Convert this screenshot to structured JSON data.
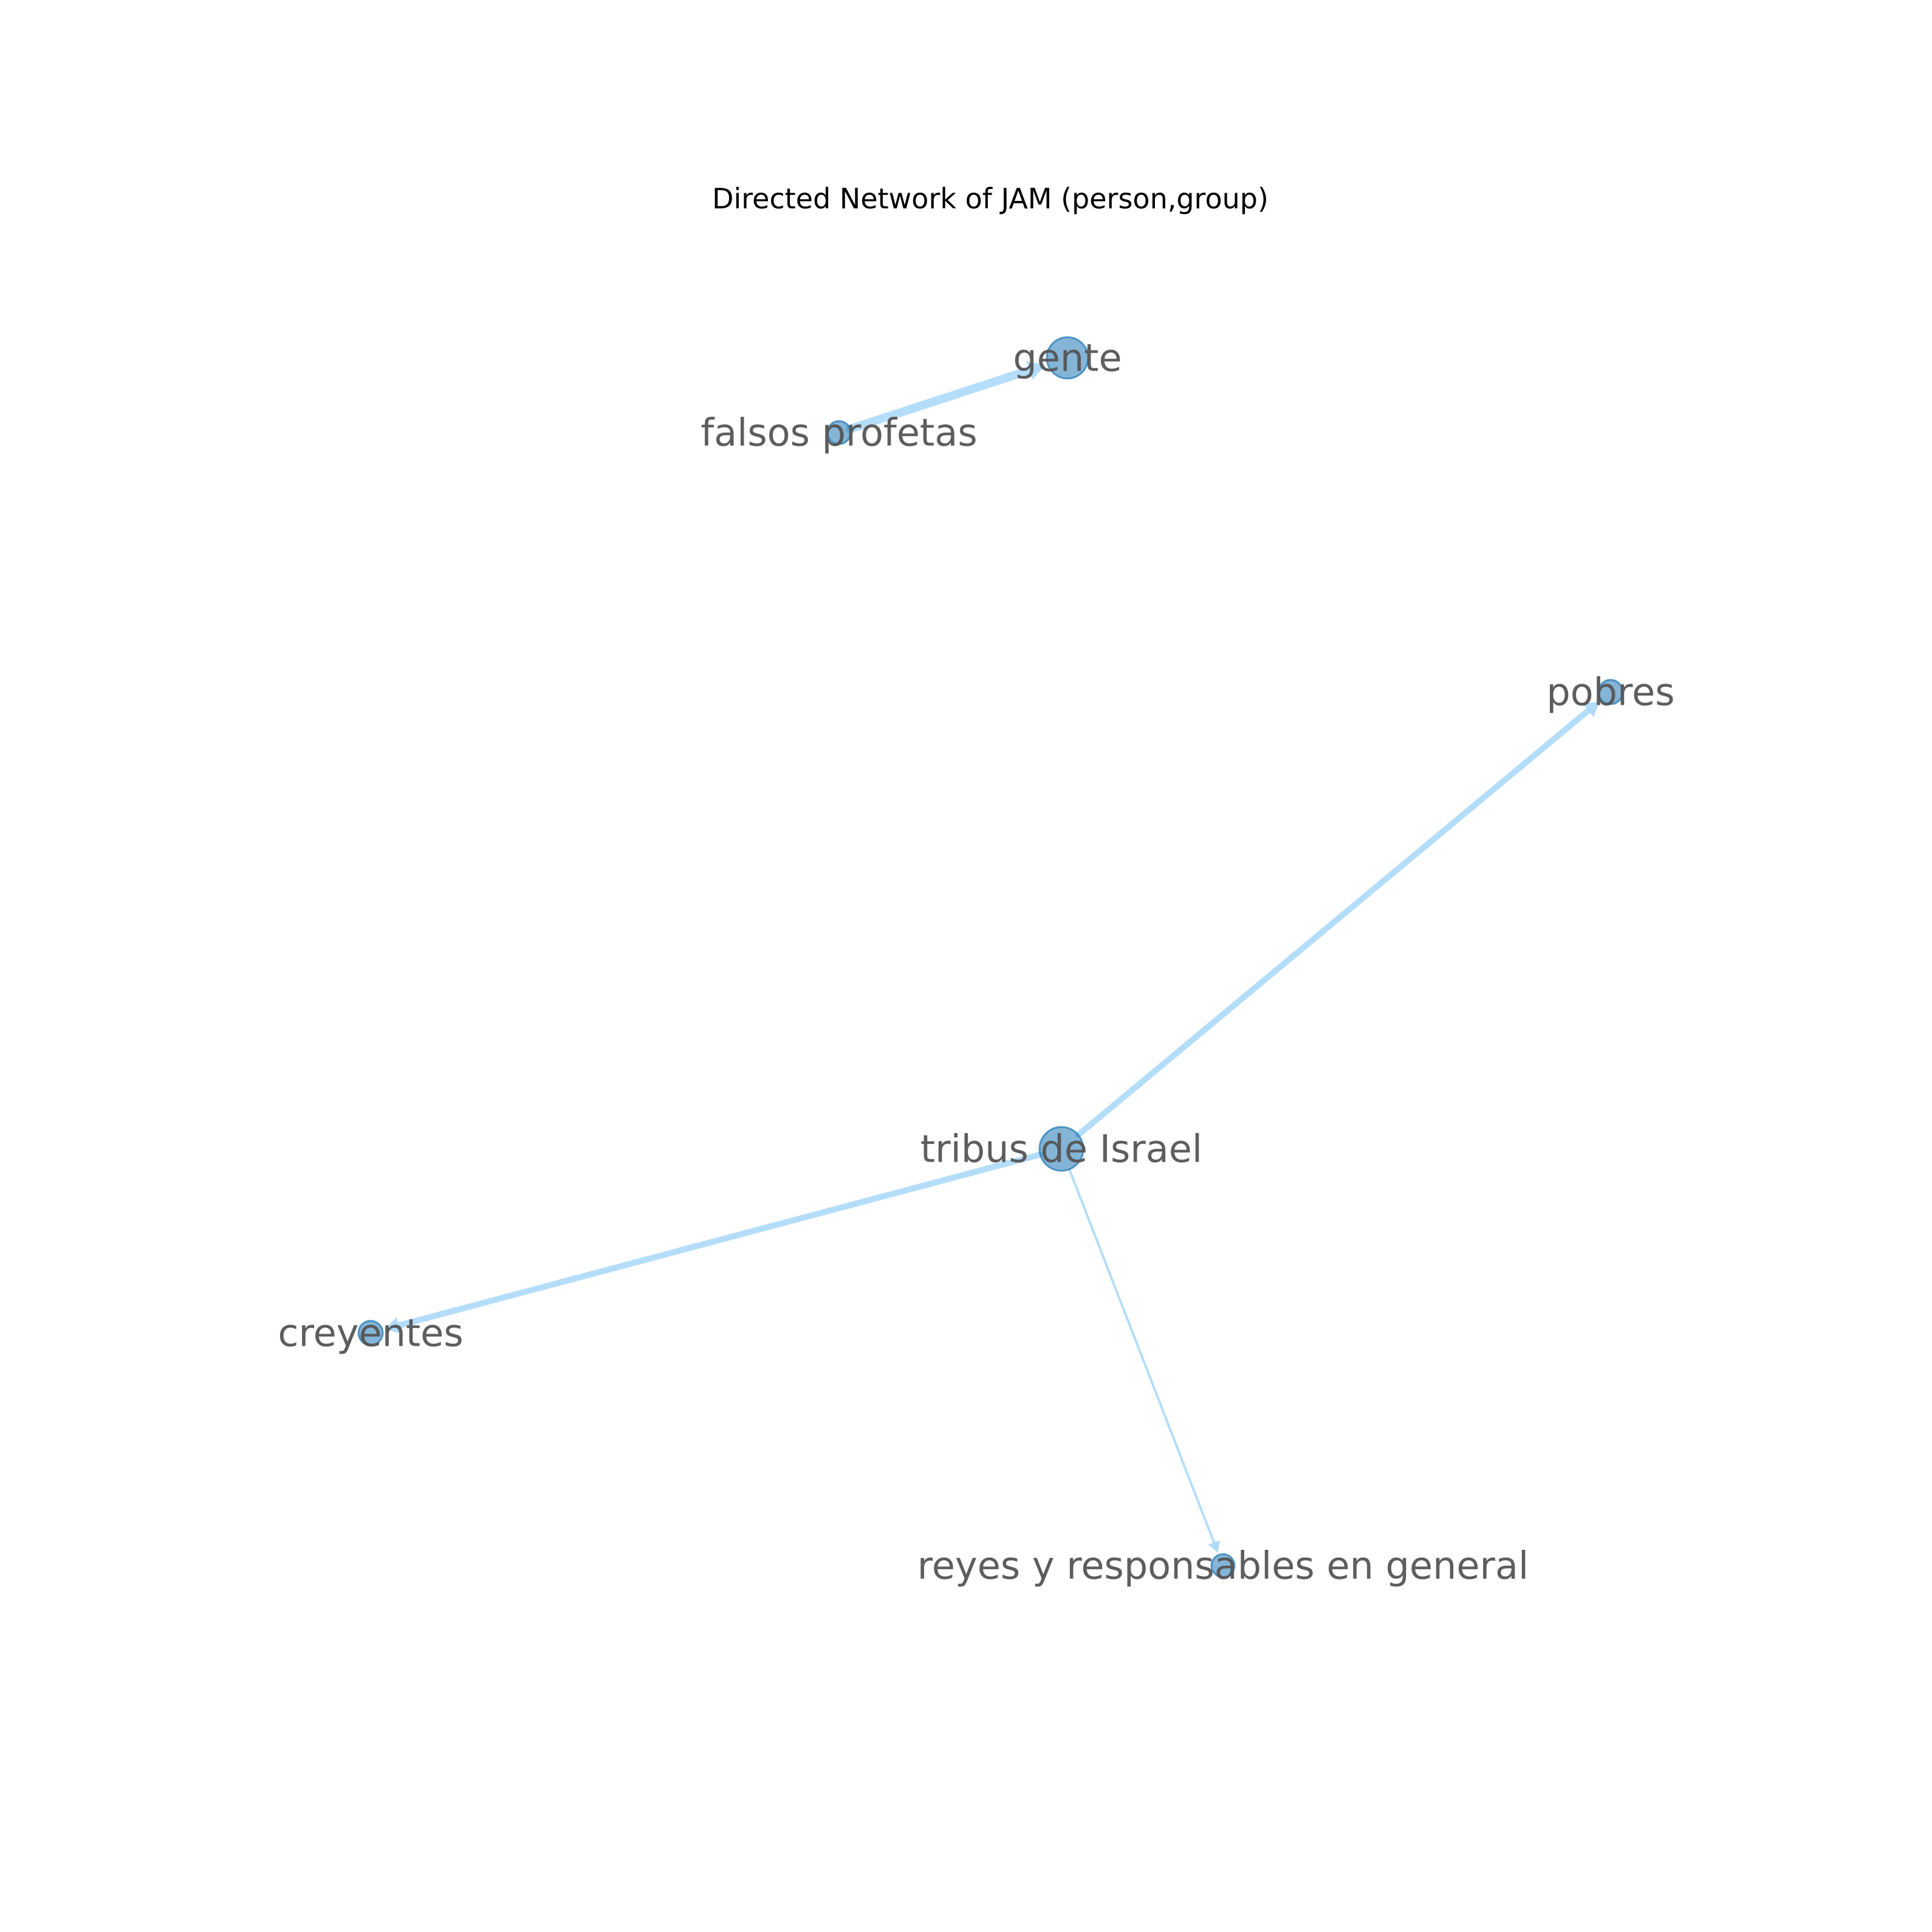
{
  "title": "Directed Network of JAM (person,group)",
  "colors": {
    "node_fill": "#1f77b4",
    "edge": "#a8d8f8",
    "label": "#555555",
    "title": "#000000"
  },
  "nodes": [
    {
      "id": "gente",
      "label": "gente"
    },
    {
      "id": "falsos profetas",
      "label": "falsos profetas"
    },
    {
      "id": "pobres",
      "label": "pobres"
    },
    {
      "id": "tribus de Israel",
      "label": "tribus de Israel"
    },
    {
      "id": "creyentes",
      "label": "creyentes"
    },
    {
      "id": "reyes y responsables en general",
      "label": "reyes y responsables en general"
    }
  ],
  "edges": [
    {
      "source": "falsos profetas",
      "target": "gente",
      "weight": 4
    },
    {
      "source": "tribus de Israel",
      "target": "pobres",
      "weight": 3
    },
    {
      "source": "tribus de Israel",
      "target": "creyentes",
      "weight": 3
    },
    {
      "source": "tribus de Israel",
      "target": "reyes y responsables en general",
      "weight": 1
    }
  ]
}
